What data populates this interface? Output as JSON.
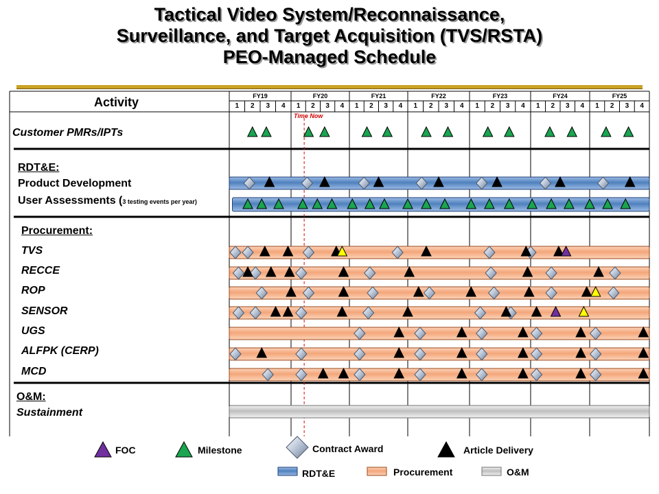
{
  "title": {
    "line1": "Tactical Video System/Reconnaissance,",
    "line2": "Surveillance, and Target Acquisition (TVS/RSTA)",
    "line3": "PEO-Managed Schedule"
  },
  "header": {
    "activity": "Activity",
    "time_now": "Time Now",
    "fiscal_years": [
      "FY19",
      "FY20",
      "FY21",
      "FY22",
      "FY23",
      "FY24",
      "FY25"
    ],
    "quarters": [
      "1",
      "2",
      "3",
      "4"
    ]
  },
  "rows": {
    "customer": "Customer PMRs/IPTs",
    "rdte_heading": "RDT&E:",
    "product_dev": "Product Development",
    "user_assess": "User Assessments (",
    "user_assess_small": "3 testing events per year)",
    "procurement_heading": "Procurement:",
    "tvs": "TVS",
    "recce": "RECCE",
    "rop": "ROP",
    "sensor": "SENSOR",
    "ugs": "UGS",
    "alfpk": "ALFPK (CERP)",
    "mcd": "MCD",
    "om_heading": "O&M:",
    "sustainment": "Sustainment"
  },
  "legend": {
    "foc": "FOC",
    "milestone": "Milestone",
    "contract_award": "Contract Award",
    "article_delivery": "Article Delivery",
    "rdte": "RDT&E",
    "procurement": "Procurement",
    "om": "O&M"
  },
  "colors": {
    "rdte_bar": "#4f81bd",
    "procurement_bar": "#f4a67a",
    "om_bar": "#bfbfbf",
    "milestone": "#1aa550",
    "foc": "#7030a0",
    "yellow_marker": "#ffff00",
    "delivery": "#000000",
    "time_now_line": "#e00000",
    "gold_rule": "#c9a224"
  },
  "schedule": {
    "customer": {
      "milestones": [
        1.5,
        2.4,
        5.2,
        6.3,
        9.2,
        10.6,
        13.2,
        14.6,
        17.2,
        18.6,
        21.3,
        22.8,
        25.1,
        26.6
      ]
    },
    "product_dev": {
      "bar": "rdte",
      "start": 0,
      "end": 28,
      "awards": [
        1.3,
        5.1,
        9.0,
        12.9,
        16.8,
        21.0,
        24.9
      ],
      "deliveries": [
        2.6,
        6.3,
        10.0,
        14.0,
        17.8,
        22.0,
        26.7
      ]
    },
    "user_assess": {
      "bar": "rdte",
      "start": 0.2,
      "end": 28,
      "milestones": [
        1.2,
        2.1,
        3.2,
        4.8,
        5.8,
        6.8,
        8.2,
        9.4,
        10.4,
        12.0,
        13.2,
        14.4,
        16.1,
        17.3,
        18.6,
        20.1,
        21.4,
        22.6,
        24.0,
        25.2,
        26.4
      ]
    },
    "tvs": {
      "bar": "procurement",
      "start": 0,
      "end": 28,
      "awards": [
        0.4,
        1.2,
        5.2,
        11.3,
        17.3,
        20.0
      ],
      "deliveries": [
        2.3,
        3.8,
        7.1,
        13.2,
        19.7,
        21.9
      ],
      "yellow": [
        7.5
      ],
      "foc": [
        22.4
      ]
    },
    "recce": {
      "bar": "procurement",
      "start": 0,
      "end": 28,
      "awards": [
        0.6,
        1.7,
        4.7,
        9.4,
        17.4,
        21.4,
        25.7
      ],
      "deliveries": [
        1.2,
        2.7,
        3.9,
        7.6,
        12.1,
        19.8,
        24.6
      ]
    },
    "rop": {
      "bar": "procurement",
      "start": 0,
      "end": 28,
      "awards": [
        2.1,
        5.2,
        9.6,
        13.4,
        17.6,
        21.4,
        25.6
      ],
      "deliveries": [
        4.0,
        7.6,
        12.7,
        16.1,
        19.9,
        23.8
      ],
      "yellow": [
        24.4
      ]
    },
    "sensor": {
      "bar": "procurement",
      "start": 0,
      "end": 28,
      "awards": [
        0.6,
        1.7,
        4.7,
        9.3,
        16.7,
        18.7
      ],
      "deliveries": [
        3.0,
        3.8,
        7.5,
        12.0,
        18.4,
        20.4
      ],
      "foc": [
        21.7
      ],
      "yellow": [
        23.6
      ]
    },
    "ugs": {
      "bar": "procurement",
      "start": 0,
      "end": 28,
      "awards": [
        8.7,
        12.8,
        16.8,
        20.4,
        24.4
      ],
      "deliveries": [
        11.4,
        15.5,
        19.5,
        23.4,
        27.6
      ]
    },
    "alfpk": {
      "bar": "procurement",
      "start": 0,
      "end": 28,
      "awards": [
        0.4,
        4.7,
        8.7,
        12.8,
        16.8,
        20.4,
        24.4
      ],
      "deliveries": [
        2.1,
        11.4,
        15.5,
        19.5,
        23.4,
        27.6
      ]
    },
    "mcd": {
      "bar": "procurement",
      "start": 0,
      "end": 28,
      "awards": [
        2.5,
        4.7,
        8.7,
        12.8,
        16.8,
        20.4,
        24.4
      ],
      "deliveries": [
        6.2,
        7.6,
        11.4,
        15.5,
        19.5,
        23.4,
        27.6
      ]
    },
    "sustainment": {
      "bar": "om",
      "start": 0,
      "end": 28
    }
  },
  "time_now_quarter": 4.9
}
